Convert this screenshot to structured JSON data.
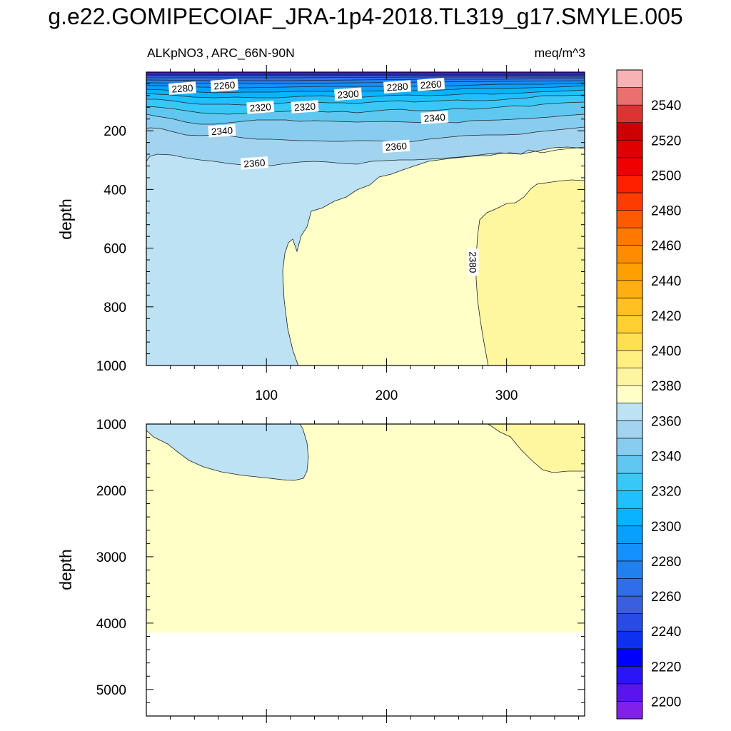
{
  "title": "g.e22.GOMIPECOIAF_JRA-1p4-2018.TL319_g17.SMYLE.005",
  "chart_data": {
    "type": "heatmap",
    "variable": "ALKpNO3",
    "region": "ARC_66N-90N",
    "units": "meq/m^3",
    "xlabel": "",
    "ylabel": "depth",
    "xlim": [
      0,
      365
    ],
    "x_ticks": [
      100,
      200,
      300
    ],
    "panels": [
      {
        "name": "upper",
        "ylim": [
          0,
          1000
        ],
        "y_ticks": [
          200,
          400,
          600,
          800,
          1000
        ]
      },
      {
        "name": "lower",
        "ylim": [
          1000,
          5400
        ],
        "y_ticks": [
          1000,
          2000,
          3000,
          4000,
          5000
        ]
      }
    ],
    "colorbar": {
      "levels": [
        2200,
        2210,
        2220,
        2230,
        2240,
        2250,
        2260,
        2270,
        2280,
        2290,
        2300,
        2310,
        2320,
        2330,
        2340,
        2350,
        2360,
        2370,
        2380,
        2390,
        2400,
        2410,
        2420,
        2430,
        2440,
        2450,
        2460,
        2470,
        2480,
        2490,
        2500,
        2510,
        2520,
        2530,
        2540,
        2550
      ],
      "labels": [
        2200,
        2220,
        2240,
        2260,
        2280,
        2300,
        2320,
        2340,
        2360,
        2380,
        2400,
        2420,
        2440,
        2460,
        2480,
        2500,
        2520,
        2540
      ],
      "colors": [
        "#8020e8",
        "#5a14f0",
        "#2a14f8",
        "#0000ff",
        "#1030f0",
        "#2a4ae6",
        "#3a5ee0",
        "#2f6ee8",
        "#2080f0",
        "#1490ff",
        "#08a0ff",
        "#08b4ff",
        "#20c0ff",
        "#38c8f8",
        "#60c8f0",
        "#88ccf0",
        "#a2d4f0",
        "#bce2f4",
        "#ffffc8",
        "#fff4a0",
        "#fff080",
        "#ffe050",
        "#ffd030",
        "#ffc020",
        "#ffb010",
        "#ffa000",
        "#ff8c00",
        "#ff7800",
        "#ff5a00",
        "#ff3c00",
        "#ff2000",
        "#f00000",
        "#e00000",
        "#cc0000",
        "#dd3333",
        "#ea6f6f",
        "#f7b3b3"
      ]
    },
    "contour_labels": [
      {
        "text": "2280",
        "x": 30,
        "depth": 55
      },
      {
        "text": "2260",
        "x": 65,
        "depth": 45
      },
      {
        "text": "2300",
        "x": 168,
        "depth": 75
      },
      {
        "text": "2280",
        "x": 209,
        "depth": 50
      },
      {
        "text": "2260",
        "x": 237,
        "depth": 42
      },
      {
        "text": "2320",
        "x": 95,
        "depth": 120
      },
      {
        "text": "2320",
        "x": 132,
        "depth": 118
      },
      {
        "text": "2340",
        "x": 63,
        "depth": 200
      },
      {
        "text": "2340",
        "x": 240,
        "depth": 155
      },
      {
        "text": "2360",
        "x": 208,
        "depth": 253
      },
      {
        "text": "2360",
        "x": 90,
        "depth": 310
      },
      {
        "text": "2380",
        "x": 272,
        "depth": 648
      }
    ]
  }
}
